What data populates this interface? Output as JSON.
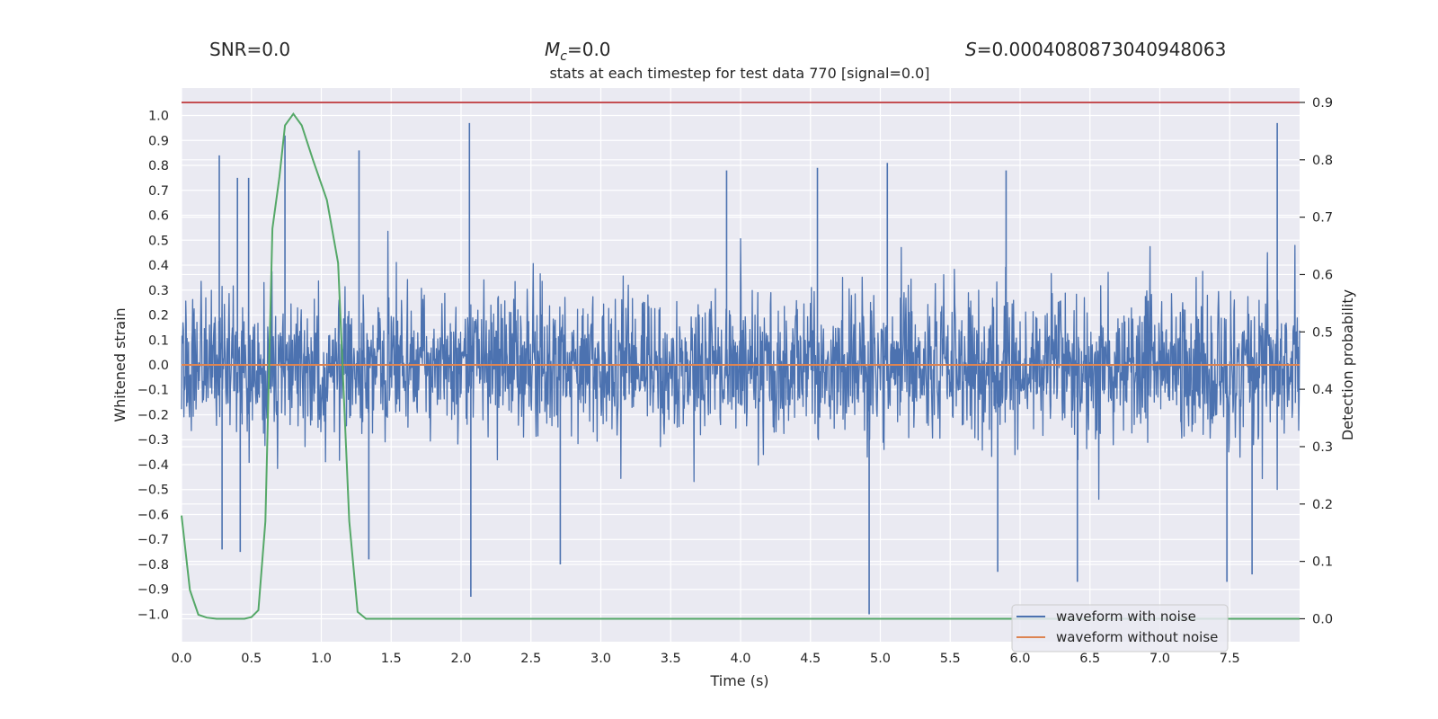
{
  "chart_data": {
    "type": "line",
    "title": "stats at each timestep for test data 770 [signal=0.0]",
    "header": {
      "snr": "SNR=0.0",
      "mc_symbol": "M",
      "mc_sub": "c",
      "mc_value": "=0.0",
      "s_symbol": "S",
      "s_value": "=0.0004080873040948063"
    },
    "xlabel": "Time (s)",
    "ylabel_left": "Whitened strain",
    "ylabel_right": "Detection probability",
    "xlim": [
      0.0,
      8.0
    ],
    "ylim_left": [
      -1.11,
      1.11
    ],
    "ylim_right": [
      -0.04,
      0.925
    ],
    "x_ticks": [
      0.0,
      0.5,
      1.0,
      1.5,
      2.0,
      2.5,
      3.0,
      3.5,
      4.0,
      4.5,
      5.0,
      5.5,
      6.0,
      6.5,
      7.0,
      7.5
    ],
    "x_tick_labels": [
      "0.0",
      "0.5",
      "1.0",
      "1.5",
      "2.0",
      "2.5",
      "3.0",
      "3.5",
      "4.0",
      "4.5",
      "5.0",
      "5.5",
      "6.0",
      "6.5",
      "7.0",
      "7.5"
    ],
    "y_left_ticks": [
      1.0,
      0.9,
      0.8,
      0.7,
      0.6,
      0.5,
      0.4,
      0.3,
      0.2,
      0.1,
      0.0,
      -0.1,
      -0.2,
      -0.3,
      -0.4,
      -0.5,
      -0.6,
      -0.7,
      -0.8,
      -0.9,
      -1.0
    ],
    "y_left_tick_labels": [
      "1.0",
      "0.9",
      "0.8",
      "0.7",
      "0.6",
      "0.5",
      "0.4",
      "0.3",
      "0.2",
      "0.1",
      "0.0",
      "−0.1",
      "−0.2",
      "−0.3",
      "−0.4",
      "−0.5",
      "−0.6",
      "−0.7",
      "−0.8",
      "−0.9",
      "−1.0"
    ],
    "y_right_ticks": [
      0.9,
      0.8,
      0.7,
      0.6,
      0.5,
      0.4,
      0.3,
      0.2,
      0.1,
      0.0
    ],
    "y_right_tick_labels": [
      "0.9",
      "0.8",
      "0.7",
      "0.6",
      "0.5",
      "0.4",
      "0.3",
      "0.2",
      "0.1",
      "0.0"
    ],
    "threshold": 0.9,
    "series": [
      {
        "name": "waveform with noise",
        "axis": "left",
        "color": "#4c72b0",
        "kind": "noise",
        "duration": 8.0,
        "typical_amplitude": 0.33,
        "spikes": [
          {
            "x": 0.27,
            "y": 0.84
          },
          {
            "x": 0.4,
            "y": 0.75
          },
          {
            "x": 0.48,
            "y": 0.75
          },
          {
            "x": 0.74,
            "y": 0.92
          },
          {
            "x": 1.27,
            "y": 0.86
          },
          {
            "x": 2.06,
            "y": 0.97
          },
          {
            "x": 2.07,
            "y": -0.93
          },
          {
            "x": 2.71,
            "y": -0.8
          },
          {
            "x": 3.9,
            "y": 0.78
          },
          {
            "x": 4.55,
            "y": 0.79
          },
          {
            "x": 4.92,
            "y": -1.0
          },
          {
            "x": 5.05,
            "y": 0.81
          },
          {
            "x": 5.9,
            "y": 0.78
          },
          {
            "x": 6.41,
            "y": -0.87
          },
          {
            "x": 7.48,
            "y": -0.87
          },
          {
            "x": 7.84,
            "y": 0.97
          },
          {
            "x": 7.66,
            "y": -0.84
          },
          {
            "x": 0.29,
            "y": -0.74
          },
          {
            "x": 0.42,
            "y": -0.75
          },
          {
            "x": 1.34,
            "y": -0.78
          },
          {
            "x": 5.84,
            "y": -0.83
          }
        ]
      },
      {
        "name": "waveform without noise",
        "axis": "left",
        "color": "#dd8452",
        "x": [
          0.0,
          8.0
        ],
        "y": [
          0.0,
          0.0
        ]
      },
      {
        "name": "detection probability",
        "axis": "right",
        "color": "#55a868",
        "x": [
          0.0,
          0.06,
          0.12,
          0.18,
          0.25,
          0.35,
          0.45,
          0.5,
          0.55,
          0.6,
          0.65,
          0.7,
          0.74,
          0.8,
          0.86,
          0.94,
          1.04,
          1.12,
          1.2,
          1.26,
          1.32,
          1.38,
          1.45,
          8.0
        ],
        "y": [
          0.18,
          0.05,
          0.007,
          0.002,
          0.0,
          0.0,
          0.0,
          0.003,
          0.015,
          0.17,
          0.68,
          0.77,
          0.86,
          0.88,
          0.86,
          0.8,
          0.73,
          0.62,
          0.17,
          0.012,
          0.0,
          0.0,
          0.0,
          0.0
        ]
      },
      {
        "name": "threshold",
        "axis": "right",
        "color": "#c44e52",
        "x": [
          0.0,
          8.0
        ],
        "y": [
          0.9,
          0.9
        ]
      }
    ],
    "legend": {
      "position": "lower-right",
      "entries": [
        {
          "label": "waveform with noise",
          "color": "#4c72b0"
        },
        {
          "label": "waveform without noise",
          "color": "#dd8452"
        }
      ]
    },
    "grid": true,
    "colors": {
      "background": "#eaeaf2",
      "grid": "#ffffff",
      "text": "#262626"
    }
  }
}
